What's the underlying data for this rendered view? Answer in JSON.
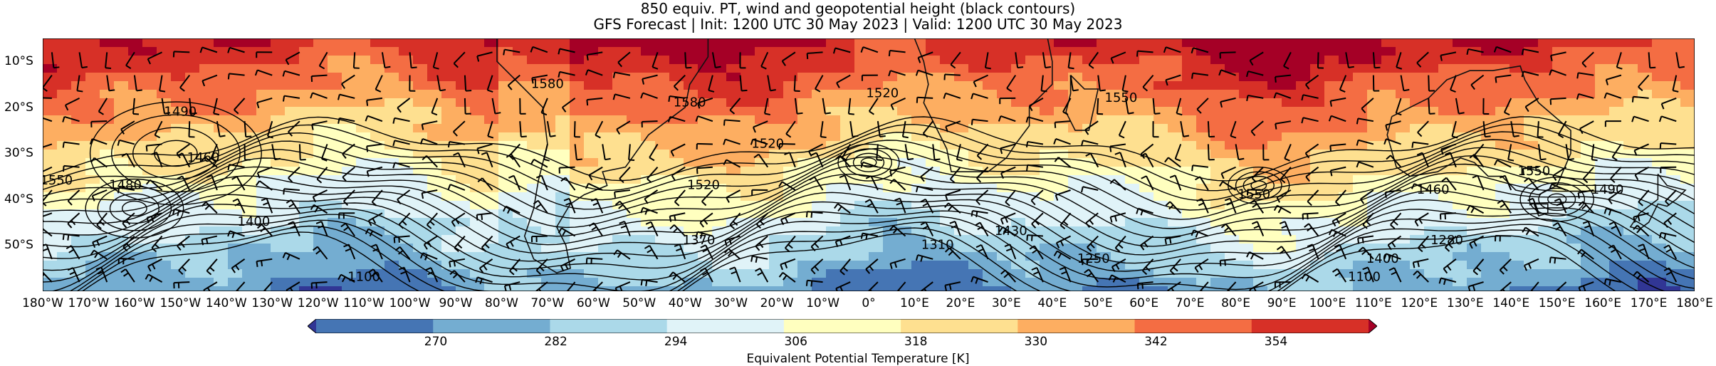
{
  "title": {
    "line1": "850 equiv. PT, wind and geopotential height (black contours)",
    "line2": "GFS Forecast | Init: 1200 UTC 30 May 2023 | Valid: 1200 UTC 30 May 2023"
  },
  "lat_ticks": [
    "10°S",
    "20°S",
    "30°S",
    "40°S",
    "50°S"
  ],
  "lon_ticks": [
    "180°W",
    "170°W",
    "160°W",
    "150°W",
    "140°W",
    "130°W",
    "120°W",
    "110°W",
    "100°W",
    "90°W",
    "80°W",
    "70°W",
    "60°W",
    "50°W",
    "40°W",
    "30°W",
    "20°W",
    "10°W",
    "0°",
    "10°E",
    "20°E",
    "30°E",
    "40°E",
    "50°E",
    "60°E",
    "70°E",
    "80°E",
    "90°E",
    "100°E",
    "110°E",
    "120°E",
    "130°E",
    "140°E",
    "150°E",
    "160°E",
    "170°E",
    "180°E"
  ],
  "contour_labels": [
    {
      "text": "1490",
      "lon": -150,
      "lat": -21
    },
    {
      "text": "1460",
      "lon": -145,
      "lat": -31
    },
    {
      "text": "1550",
      "lon": -177,
      "lat": -36
    },
    {
      "text": "1480",
      "lon": -162,
      "lat": -37
    },
    {
      "text": "1400",
      "lon": -134,
      "lat": -45
    },
    {
      "text": "1100",
      "lon": -110,
      "lat": -57
    },
    {
      "text": "1580",
      "lon": -70,
      "lat": -15
    },
    {
      "text": "1580",
      "lon": -39,
      "lat": -19
    },
    {
      "text": "1520",
      "lon": -36,
      "lat": -37
    },
    {
      "text": "1370",
      "lon": -37,
      "lat": -49
    },
    {
      "text": "1520",
      "lon": -22,
      "lat": -28
    },
    {
      "text": "1520",
      "lon": 3,
      "lat": -17
    },
    {
      "text": "1310",
      "lon": 15,
      "lat": -50
    },
    {
      "text": "1430",
      "lon": 31,
      "lat": -47
    },
    {
      "text": "1550",
      "lon": 55,
      "lat": -18
    },
    {
      "text": "1250",
      "lon": 49,
      "lat": -53
    },
    {
      "text": "1550",
      "lon": 84,
      "lat": -39
    },
    {
      "text": "1460",
      "lon": 123,
      "lat": -38
    },
    {
      "text": "1280",
      "lon": 126,
      "lat": -49
    },
    {
      "text": "1490",
      "lon": 161,
      "lat": -38
    },
    {
      "text": "1550",
      "lon": 145,
      "lat": -34
    },
    {
      "text": "1100",
      "lon": 108,
      "lat": -57
    },
    {
      "text": "1400",
      "lon": 112,
      "lat": -53
    }
  ],
  "colorbar": {
    "ticks": [
      "270",
      "282",
      "294",
      "306",
      "318",
      "330",
      "342",
      "354"
    ],
    "label": "Equivalent Potential Temperature [K]",
    "colors": [
      "#313695",
      "#4575b4",
      "#74add1",
      "#abd9e9",
      "#e0f3f8",
      "#ffffbf",
      "#fee090",
      "#fdae61",
      "#f46d43",
      "#d73027",
      "#a50026"
    ]
  },
  "map_data": {
    "lon_range": [
      -180,
      180
    ],
    "lat_range": [
      -60,
      -5
    ],
    "field": "Equivalent Potential Temperature [K]",
    "value_range": [
      264,
      360
    ],
    "trough_centers": [
      {
        "lon": -160,
        "lat": -42,
        "depth": 8
      },
      {
        "lon": -151,
        "lat": -30,
        "depth": 14
      },
      {
        "lon": 0,
        "lat": -32,
        "depth": 5
      },
      {
        "lon": 85,
        "lat": -37,
        "depth": 5
      },
      {
        "lon": 150,
        "lat": -40,
        "depth": 6
      }
    ]
  }
}
